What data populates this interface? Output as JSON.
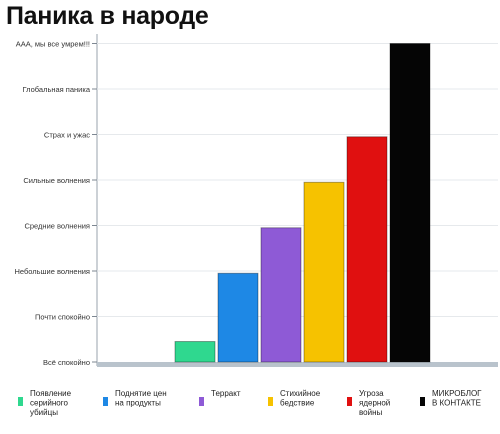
{
  "title": "Паника в народе",
  "chart_data": {
    "type": "bar",
    "ylabel": "",
    "xlabel": "",
    "y_levels": [
      "Всё спокойно",
      "Почти спокойно",
      "Небольшие волнения",
      "Средние волнения",
      "Сильные волнения",
      "Страх и ужас",
      "Глобальная паника",
      "ААА, мы все умрем!!!"
    ],
    "ylim": [
      0,
      7
    ],
    "categories": [
      "Появление серийного убийцы",
      "Поднятие цен на продукты",
      "Терракт",
      "Стихийное бедствие",
      "Угроза ядерной войны",
      "МИКРОБЛОГ В КОНТАКТЕ"
    ],
    "values": [
      0.45,
      1.95,
      2.95,
      3.95,
      4.95,
      7.0
    ],
    "colors": [
      "#2fd88f",
      "#1e88e5",
      "#8e5ad6",
      "#f6c200",
      "#e01010",
      "#050505"
    ],
    "legend_position": "bottom",
    "legend": [
      [
        "Появление",
        "серийного",
        "убийцы"
      ],
      [
        "Поднятие цен",
        "на продукты"
      ],
      [
        "Терракт"
      ],
      [
        "Стихийное",
        "бедствие"
      ],
      [
        "Угроза",
        "ядерной",
        "войны"
      ],
      [
        "МИКРОБЛОГ",
        "В КОНТАКТЕ"
      ]
    ]
  }
}
